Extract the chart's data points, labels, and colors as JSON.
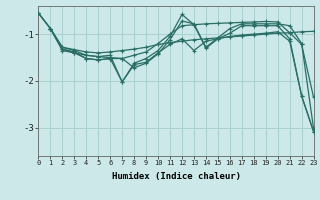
{
  "xlabel": "Humidex (Indice chaleur)",
  "bg_color": "#cce8e8",
  "grid_color": "#aad0d0",
  "line_color": "#2a6e65",
  "xlim": [
    0,
    23
  ],
  "ylim": [
    -3.6,
    -0.4
  ],
  "yticks": [
    -3,
    -2,
    -1
  ],
  "xticks": [
    0,
    1,
    2,
    3,
    4,
    5,
    6,
    7,
    8,
    9,
    10,
    11,
    12,
    13,
    14,
    15,
    16,
    17,
    18,
    19,
    20,
    21,
    22,
    23
  ],
  "lines": [
    {
      "x": [
        0,
        1,
        2,
        3,
        4,
        5,
        6,
        7,
        8,
        9,
        10,
        11,
        12,
        13,
        14,
        15,
        16,
        17,
        18,
        19,
        20,
        21,
        22,
        23
      ],
      "y": [
        -0.55,
        -0.88,
        -1.28,
        -1.33,
        -1.38,
        -1.4,
        -1.38,
        -1.35,
        -1.32,
        -1.28,
        -1.22,
        -1.18,
        -1.15,
        -1.12,
        -1.1,
        -1.08,
        -1.06,
        -1.04,
        -1.02,
        -1.0,
        -0.98,
        -0.97,
        -0.95,
        -0.94
      ]
    },
    {
      "x": [
        0,
        1,
        2,
        3,
        4,
        5,
        6,
        7,
        8,
        9,
        10,
        11,
        12,
        13,
        14,
        15,
        16,
        17,
        18,
        19,
        20,
        21,
        22,
        23
      ],
      "y": [
        -0.55,
        -0.88,
        -1.28,
        -1.35,
        -1.45,
        -1.48,
        -1.5,
        -1.52,
        -1.45,
        -1.38,
        -1.2,
        -1.0,
        -0.82,
        -0.8,
        -0.78,
        -0.77,
        -0.76,
        -0.75,
        -0.74,
        -0.73,
        -0.74,
        -0.97,
        -1.22,
        -2.35
      ]
    },
    {
      "x": [
        1,
        2,
        3,
        4,
        5,
        6,
        7,
        8,
        9,
        10,
        11,
        12,
        13,
        14,
        15,
        16,
        17,
        18,
        19,
        20,
        21,
        22,
        23
      ],
      "y": [
        -0.88,
        -1.32,
        -1.38,
        -1.52,
        -1.55,
        -1.52,
        -2.02,
        -1.62,
        -1.52,
        -1.35,
        -1.05,
        -0.58,
        -0.8,
        -1.3,
        -1.1,
        -0.98,
        -0.82,
        -0.82,
        -0.82,
        -0.82,
        -1.1,
        -2.32,
        -3.08
      ]
    },
    {
      "x": [
        1,
        2,
        3,
        4,
        5,
        6,
        7,
        8,
        9,
        10,
        11,
        12,
        13,
        14,
        15,
        16,
        17,
        18,
        19,
        20,
        21,
        22,
        23
      ],
      "y": [
        -0.88,
        -1.32,
        -1.4,
        -1.52,
        -1.55,
        -1.52,
        -1.52,
        -1.72,
        -1.62,
        -1.42,
        -1.12,
        -0.72,
        -0.78,
        -1.28,
        -1.08,
        -0.88,
        -0.78,
        -0.78,
        -0.78,
        -0.78,
        -0.82,
        -1.2,
        -3.02
      ]
    },
    {
      "x": [
        0,
        1,
        2,
        3,
        4,
        5,
        6,
        7,
        8,
        9,
        10,
        11,
        12,
        13,
        14,
        15,
        16,
        17,
        18,
        19,
        20,
        21,
        22,
        23
      ],
      "y": [
        -0.55,
        -0.88,
        -1.35,
        -1.4,
        -1.45,
        -1.48,
        -1.45,
        -2.02,
        -1.65,
        -1.6,
        -1.4,
        -1.22,
        -1.1,
        -1.35,
        -1.15,
        -1.1,
        -1.05,
        -1.02,
        -1.0,
        -0.98,
        -0.95,
        -1.15,
        -2.32,
        -3.08
      ]
    }
  ]
}
